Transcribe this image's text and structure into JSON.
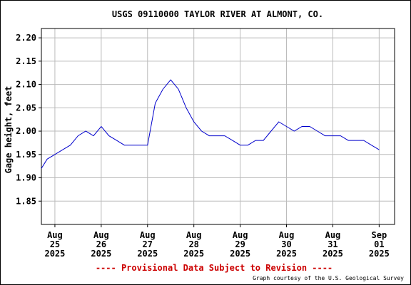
{
  "chart_data": {
    "type": "line",
    "title": "USGS 09110000 TAYLOR RIVER AT ALMONT, CO.",
    "ylabel": "Gage height, feet",
    "xlabel": "",
    "ylim": [
      1.8,
      2.22
    ],
    "yticks": [
      "2.20",
      "2.15",
      "2.10",
      "2.05",
      "2.00",
      "1.95",
      "1.90",
      "1.85"
    ],
    "ytick_values": [
      2.2,
      2.15,
      2.1,
      2.05,
      2.0,
      1.95,
      1.9,
      1.85
    ],
    "xlim": [
      "2025-08-24T17:00",
      "2025-09-01T08:00"
    ],
    "xticks": [
      {
        "date": "2025-08-25",
        "line1": "Aug",
        "line2": "25",
        "line3": "2025"
      },
      {
        "date": "2025-08-26",
        "line1": "Aug",
        "line2": "26",
        "line3": "2025"
      },
      {
        "date": "2025-08-27",
        "line1": "Aug",
        "line2": "27",
        "line3": "2025"
      },
      {
        "date": "2025-08-28",
        "line1": "Aug",
        "line2": "28",
        "line3": "2025"
      },
      {
        "date": "2025-08-29",
        "line1": "Aug",
        "line2": "29",
        "line3": "2025"
      },
      {
        "date": "2025-08-30",
        "line1": "Aug",
        "line2": "30",
        "line3": "2025"
      },
      {
        "date": "2025-08-31",
        "line1": "Aug",
        "line2": "31",
        "line3": "2025"
      },
      {
        "date": "2025-09-01",
        "line1": "Sep",
        "line2": "01",
        "line3": "2025"
      }
    ],
    "grid": true,
    "series": [
      {
        "color": "#0000cc",
        "x": [
          "2025-08-24T17:00",
          "2025-08-24T20:00",
          "2025-08-25T00:00",
          "2025-08-25T04:00",
          "2025-08-25T08:00",
          "2025-08-25T12:00",
          "2025-08-25T16:00",
          "2025-08-25T20:00",
          "2025-08-26T00:00",
          "2025-08-26T04:00",
          "2025-08-26T08:00",
          "2025-08-26T12:00",
          "2025-08-26T16:00",
          "2025-08-26T20:00",
          "2025-08-27T00:00",
          "2025-08-27T04:00",
          "2025-08-27T08:00",
          "2025-08-27T12:00",
          "2025-08-27T16:00",
          "2025-08-27T20:00",
          "2025-08-28T00:00",
          "2025-08-28T04:00",
          "2025-08-28T08:00",
          "2025-08-28T12:00",
          "2025-08-28T16:00",
          "2025-08-28T20:00",
          "2025-08-29T00:00",
          "2025-08-29T04:00",
          "2025-08-29T08:00",
          "2025-08-29T12:00",
          "2025-08-29T16:00",
          "2025-08-29T20:00",
          "2025-08-30T00:00",
          "2025-08-30T04:00",
          "2025-08-30T08:00",
          "2025-08-30T12:00",
          "2025-08-30T16:00",
          "2025-08-30T20:00",
          "2025-08-31T00:00",
          "2025-08-31T04:00",
          "2025-08-31T08:00",
          "2025-08-31T12:00",
          "2025-08-31T16:00",
          "2025-08-31T20:00",
          "2025-09-01T00:00"
        ],
        "y": [
          1.92,
          1.94,
          1.95,
          1.96,
          1.97,
          1.99,
          2.0,
          1.99,
          2.01,
          1.99,
          1.98,
          1.97,
          1.97,
          1.97,
          1.97,
          2.06,
          2.09,
          2.11,
          2.09,
          2.05,
          2.02,
          2.0,
          1.99,
          1.99,
          1.99,
          1.98,
          1.97,
          1.97,
          1.98,
          1.98,
          2.0,
          2.02,
          2.01,
          2.0,
          2.01,
          2.01,
          2.0,
          1.99,
          1.99,
          1.99,
          1.98,
          1.98,
          1.98,
          1.97,
          1.96
        ]
      }
    ]
  },
  "footer": {
    "provisional": "---- Provisional Data Subject to Revision ----",
    "credit": "Graph courtesy of the U.S. Geological Survey"
  },
  "colors": {
    "line": "#0000cc",
    "grid": "#bbbbbb",
    "provisional": "#cc0000"
  }
}
